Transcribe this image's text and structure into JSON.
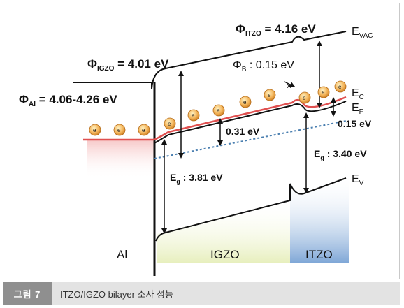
{
  "figure": {
    "phi_igzo_symbol": "Φ",
    "phi_igzo_sub": "IGZO",
    "phi_igzo_value": " = 4.01 eV",
    "phi_itzo_symbol": "Φ",
    "phi_itzo_sub": "ITZO",
    "phi_itzo_value": " = 4.16 eV",
    "phi_al_symbol": "Φ",
    "phi_al_sub": "Al",
    "phi_al_value": " = 4.06-4.26 eV",
    "phi_b_symbol": "Φ",
    "phi_b_sub": "B",
    "phi_b_value": " : 0.15 eV",
    "e_vac_main": "E",
    "e_vac_sub": "VAC",
    "e_c_main": "E",
    "e_c_sub": "C",
    "e_f_main": "E",
    "e_f_sub": "F",
    "e_v_main": "E",
    "e_v_sub": "V",
    "offset_031": "0.31 eV",
    "offset_015": "0.15 eV",
    "eg_igzo_main": "E",
    "eg_igzo_sub": "g",
    "eg_igzo_value": " : 3.81 eV",
    "eg_itzo_main": "E",
    "eg_itzo_sub": "g",
    "eg_itzo_value": " : 3.40 eV",
    "region_al": "Al",
    "region_igzo": "IGZO",
    "region_itzo": "ITZO",
    "electron_symbol": "e",
    "barrier_mark": "×",
    "colors": {
      "conduction_band": "#e05050",
      "fermi_level": "#4a7fb0",
      "electron_fill": "#f3b45a",
      "al_fill": "#f7c9c9",
      "igzo_fill": "#e4edb5",
      "itzo_fill": "#7ea6d6"
    }
  },
  "caption": {
    "tag": "그림 7",
    "text": "ITZO/IGZO bilayer 소자 성능"
  }
}
